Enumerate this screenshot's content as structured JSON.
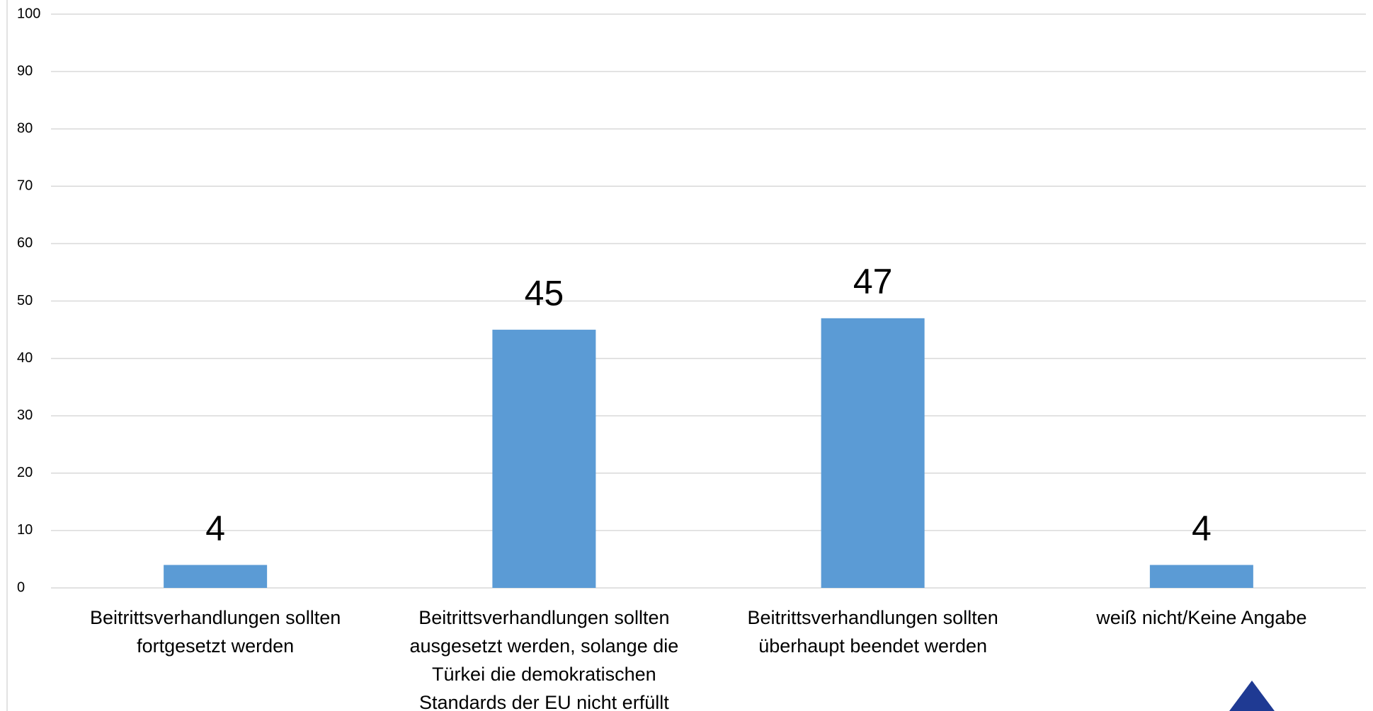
{
  "chart_data": {
    "type": "bar",
    "categories": [
      "Beitrittsverhandlungen sollten fortgesetzt werden",
      "Beitrittsverhandlungen sollten ausgesetzt werden, solange die Türkei die demokratischen Standards der EU nicht erfüllt",
      "Beitrittsverhandlungen sollten überhaupt beendet werden",
      "weiß nicht/Keine Angabe"
    ],
    "values": [
      4,
      45,
      47,
      4
    ],
    "color": "#5b9bd5",
    "ylim": [
      0,
      100
    ],
    "yticks": [
      0,
      10,
      20,
      30,
      40,
      50,
      60,
      70,
      80,
      90,
      100
    ],
    "grid": true
  }
}
